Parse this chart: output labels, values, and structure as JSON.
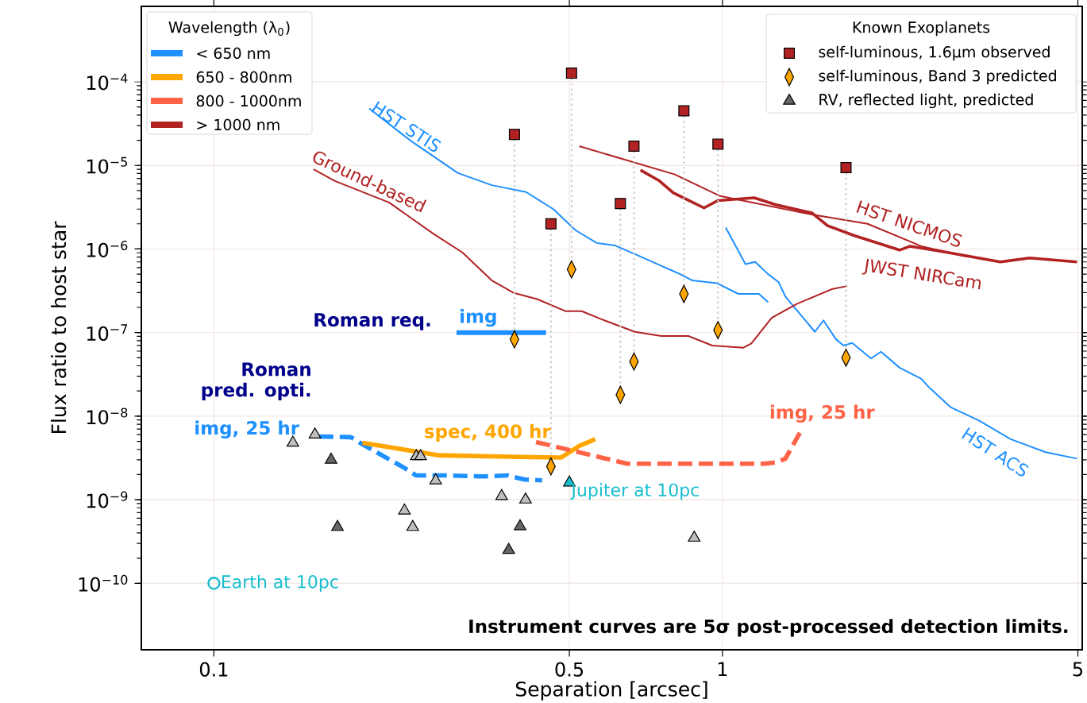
{
  "chart_data": {
    "type": "line",
    "xlabel": "Separation [arcsec]",
    "ylabel": "Flux ratio to host star",
    "legend_title": "Wavelength (λ$_{0}$)",
    "log": "xy",
    "grid": true,
    "legend": "top left",
    "xlim": [
      0.072,
      5.1
    ],
    "ylim": [
      1.6e-11,
      0.0008
    ],
    "xticks": [
      0.1,
      0.5,
      1,
      5
    ],
    "yticks": [
      {
        "value": 1e-10,
        "label": "10$^{−10}$"
      },
      {
        "value": 1e-09,
        "label": "10$^{−9}$"
      },
      {
        "value": 1e-08,
        "label": "10$^{−8}$"
      },
      {
        "value": 1e-07,
        "label": "10$^{−7}$"
      },
      {
        "value": 1e-06,
        "label": "10$^{−6}$"
      },
      {
        "value": 1e-05,
        "label": "10$^{−5}$"
      },
      {
        "value": 0.0001,
        "label": "10$^{−4}$"
      }
    ],
    "series": [
      {
        "name": "< 650 nm",
        "color": "#1e90ff",
        "line_style": "solid",
        "x": [
          0.202,
          0.243,
          0.302,
          0.352,
          0.411,
          0.465,
          0.514,
          0.566,
          0.615,
          0.673,
          0.758,
          0.82,
          0.873,
          0.975,
          1.075,
          1.18,
          1.23
        ],
        "values": [
          4.8e-05,
          2e-05,
          8.1e-06,
          5.8e-06,
          4.8e-06,
          3e-06,
          1.68e-06,
          1.18e-06,
          1.1e-06,
          8.7e-07,
          6.3e-07,
          5.1e-07,
          4.2e-07,
          3.9e-07,
          2.9e-07,
          2.9e-07,
          2.3e-07
        ]
      },
      {
        "color": "#1e90ff",
        "line_style": "solid",
        "x": [
          1.015,
          1.11,
          1.16,
          1.23,
          1.29,
          1.33,
          1.52,
          1.58,
          1.67,
          1.73,
          1.8,
          1.96,
          2.05,
          2.23,
          2.46,
          2.55,
          2.81,
          3.2,
          3.69,
          4.32,
          4.98
        ],
        "values": [
          1.8e-06,
          6.6e-07,
          7e-07,
          5e-07,
          4e-07,
          2.7e-07,
          1.02e-07,
          1.4e-07,
          8.4e-08,
          7e-08,
          7.5e-08,
          4.9e-08,
          5.9e-08,
          3.8e-08,
          2.8e-08,
          2.2e-08,
          1.28e-08,
          8.8e-09,
          5.3e-09,
          3.7e-09,
          3.1e-09
        ]
      },
      {
        "color": "#1e90ff",
        "line_style": "solid",
        "x": [
          0.3,
          0.45
        ],
        "values": [
          1e-07,
          1e-07
        ]
      },
      {
        "color": "#1e90ff",
        "line_style": "dashed",
        "x": [
          0.161,
          0.186,
          0.196,
          0.237,
          0.25,
          0.284,
          0.34,
          0.379,
          0.407,
          0.442
        ],
        "values": [
          5.7e-09,
          5.6e-09,
          4.6e-09,
          2.4e-09,
          1.95e-09,
          1.95e-09,
          1.9e-09,
          1.95e-09,
          1.75e-09,
          1.7e-09
        ]
      },
      {
        "name": "650 - 800nm",
        "color": "#ffa500",
        "line_style": "solid",
        "x": [
          0.196,
          0.277,
          0.4,
          0.482,
          0.523,
          0.562
        ],
        "values": [
          4.8e-09,
          3.4e-09,
          3.25e-09,
          3.2e-09,
          4.4e-09,
          5.3e-09
        ]
      },
      {
        "name": "800 - 1000nm",
        "color": "#ff6347",
        "line_style": "dashed",
        "x": [
          0.43,
          0.65,
          1.21,
          1.28,
          1.33,
          1.42
        ],
        "values": [
          4.9e-09,
          2.7e-09,
          2.7e-09,
          2.8e-09,
          3.1e-09,
          6.3e-09
        ]
      },
      {
        "name": "> 1000 nm",
        "color": "#b22222",
        "line_style": "solid",
        "x": [
          0.157,
          0.173,
          0.221,
          0.271,
          0.308,
          0.352,
          0.388,
          0.433,
          0.492,
          0.529,
          0.577,
          0.673,
          0.758,
          0.857,
          0.955,
          1.1,
          1.14,
          1.25,
          1.4,
          1.64,
          1.76
        ],
        "values": [
          9e-06,
          6.5e-06,
          3.6e-06,
          1.5e-06,
          9.1e-07,
          4.2e-07,
          3e-07,
          2.5e-07,
          1.8e-07,
          1.8e-07,
          1.45e-07,
          1.02e-07,
          9.1e-08,
          9.1e-08,
          7e-08,
          6.6e-08,
          7.4e-08,
          1.5e-07,
          2.2e-07,
          3.3e-07,
          3.6e-07
        ]
      },
      {
        "color": "#b22222",
        "line_style": "solid",
        "x": [
          0.523,
          0.806,
          0.99,
          1.49,
          1.93,
          2.46,
          3.02
        ],
        "values": [
          1.7e-05,
          7.8e-06,
          4.3e-06,
          2.6e-06,
          2e-06,
          1.08e-06,
          8.1e-07
        ]
      },
      {
        "color": "#b22222",
        "line_style": "solid",
        "x": [
          0.69,
          0.75,
          0.8,
          0.92,
          0.98,
          1.155,
          1.27,
          1.5,
          1.61,
          1.82,
          2.23,
          2.34,
          2.77,
          3.52,
          4.02,
          4.98
        ],
        "values": [
          8.8e-06,
          6.6e-06,
          4.7e-06,
          3.1e-06,
          3.8e-06,
          4.1e-06,
          3.4e-06,
          2.7e-06,
          1.9e-06,
          1.44e-06,
          9.7e-07,
          1.08e-06,
          9.1e-07,
          7e-07,
          7.8e-07,
          7e-07
        ]
      },
      {
        "color": "#c8c8c8",
        "line_style": "dotted",
        "x": [
          0.39,
          0.39,
          null,
          0.46,
          0.46,
          null,
          0.505,
          0.505,
          null,
          0.63,
          0.63,
          null,
          0.67,
          0.67,
          null,
          0.84,
          0.84,
          null,
          0.98,
          0.98,
          null,
          1.75,
          1.75
        ],
        "values": [
          2.35e-05,
          8.3e-08,
          null,
          2e-06,
          2.5e-09,
          null,
          0.000127,
          5.7e-07,
          null,
          3.5e-06,
          1.8e-08,
          null,
          1.7e-05,
          4.5e-08,
          null,
          4.5e-05,
          2.9e-07,
          null,
          1.8e-05,
          1.07e-07,
          null,
          9.4e-06,
          5e-08
        ]
      },
      {
        "name": "self-luminous, 1.6μm observed",
        "type": "scatter",
        "marker": "square",
        "color": "#b22222",
        "x": [
          0.39,
          0.46,
          0.505,
          0.63,
          0.67,
          0.84,
          0.98,
          1.75
        ],
        "values": [
          2.35e-05,
          2e-06,
          0.000127,
          3.5e-06,
          1.7e-05,
          4.5e-05,
          1.8e-05,
          9.4e-06
        ]
      },
      {
        "name": "self-luminous, Band 3 predicted",
        "type": "scatter",
        "marker": "diamond",
        "color": "#ffa500",
        "x": [
          0.39,
          0.46,
          0.505,
          0.63,
          0.67,
          0.84,
          0.98,
          1.75
        ],
        "values": [
          8.3e-08,
          2.5e-09,
          5.7e-07,
          1.8e-08,
          4.5e-08,
          2.9e-07,
          1.07e-07,
          5e-08
        ]
      },
      {
        "name": "RV, reflected light, predicted",
        "type": "scatter",
        "marker": "triangle",
        "color": "#666666",
        "colors": [
          "#bfbfbf",
          "#bfbfbf",
          "#666666",
          "#666666",
          "#bfbfbf",
          "#bfbfbf",
          "#bfbfbf",
          "#bfbfbf",
          "#bfbfbf",
          "#bfbfbf",
          "#666666",
          "#666666",
          "#bfbfbf",
          "#bfbfbf"
        ],
        "x": [
          0.143,
          0.158,
          0.17,
          0.175,
          0.237,
          0.246,
          0.25,
          0.255,
          0.273,
          0.368,
          0.38,
          0.4,
          0.41,
          0.88
        ],
        "values": [
          4.8e-09,
          6e-09,
          3e-09,
          4.7e-10,
          7.4e-10,
          4.7e-10,
          3.3e-09,
          3.3e-09,
          1.7e-09,
          1.1e-09,
          2.5e-10,
          4.8e-10,
          1e-09,
          3.5e-10
        ]
      },
      {
        "type": "scatter",
        "marker": "triangle",
        "color": "#17becf",
        "x": [
          0.5
        ],
        "values": [
          1.6e-09
        ]
      },
      {
        "type": "scatter",
        "marker": "circle",
        "color": "#17becf",
        "x": [
          0.1
        ],
        "values": [
          1e-10
        ]
      }
    ],
    "annotations": [
      "HST STIS",
      "Ground-based",
      "HST NICMOS",
      "JWST NIRCam",
      "HST ACS",
      "Roman req.",
      "img",
      "Roman pred. opti.",
      "img, 25 hr",
      "spec, 400 hr",
      "img, 25 hr",
      {
        "text": "Jupiter at 10pc",
        "x": 0.5,
        "y": 1.6e-09
      },
      {
        "text": "Earth at 10pc",
        "x": 0.1,
        "y": 1e-10
      },
      "Instrument curves are 5σ post-processed detection limits.",
      "Known Exoplanets"
    ]
  }
}
